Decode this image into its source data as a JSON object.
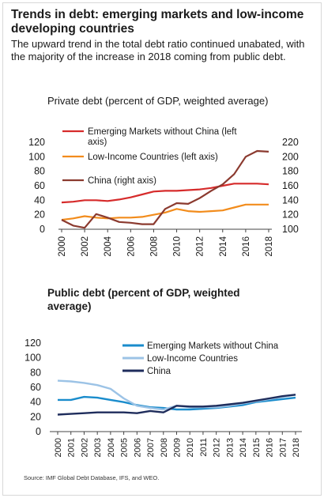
{
  "header": {
    "title": "Trends in debt: emerging markets and low-income developing countries",
    "subtitle": "The upward trend in the total debt ratio continued unabated, with the majority of the increase in 2018 coming from public debt."
  },
  "source": "Source: IMF Global Debt Database, IFS, and WEO.",
  "colors": {
    "em_red": "#d62b2b",
    "lic_orange": "#f28c1c",
    "china_brown": "#8b3a2f",
    "em_blue": "#1a8ccc",
    "lic_lightblue": "#9cc3e6",
    "china_navy": "#1f2d5c"
  },
  "chart_data": [
    {
      "type": "line",
      "title": "Private debt (percent of GDP, weighted average)",
      "x": [
        "2000",
        "2001",
        "2002",
        "2003",
        "2004",
        "2005",
        "2006",
        "2007",
        "2008",
        "2009",
        "2010",
        "2011",
        "2012",
        "2013",
        "2014",
        "2015",
        "2016",
        "2017",
        "2018"
      ],
      "xticks": [
        "2000",
        "2002",
        "2004",
        "2006",
        "2008",
        "2010",
        "2012",
        "2014",
        "2016",
        "2018"
      ],
      "ylim": [
        0,
        120
      ],
      "yticks": [
        "0",
        "20",
        "40",
        "60",
        "80",
        "100",
        "120"
      ],
      "y2lim": [
        100,
        220
      ],
      "y2ticks": [
        "100",
        "120",
        "140",
        "160",
        "180",
        "200",
        "220"
      ],
      "legend_placement": "top",
      "series": [
        {
          "name": "Emerging Markets without China (left axis)",
          "axis": "left",
          "color": "#d62b2b",
          "values": [
            37,
            38,
            40,
            40,
            39,
            41,
            44,
            48,
            52,
            53,
            53,
            54,
            55,
            57,
            60,
            63,
            63,
            63,
            62
          ]
        },
        {
          "name": "Low-Income Countries (left axis)",
          "axis": "left",
          "color": "#f28c1c",
          "values": [
            13,
            15,
            18,
            16,
            15,
            16,
            16,
            17,
            20,
            23,
            28,
            25,
            24,
            25,
            26,
            30,
            34,
            34,
            34
          ]
        },
        {
          "name": "China (right axis)",
          "axis": "right",
          "color": "#8b3a2f",
          "values": [
            113,
            105,
            102,
            121,
            116,
            110,
            109,
            107,
            107,
            128,
            136,
            135,
            143,
            153,
            162,
            176,
            200,
            208,
            207
          ]
        }
      ]
    },
    {
      "type": "line",
      "title": "Public debt (percent of GDP, weighted average)",
      "x": [
        "2000",
        "2001",
        "2002",
        "2003",
        "2004",
        "2005",
        "2006",
        "2007",
        "2008",
        "2009",
        "2010",
        "2011",
        "2012",
        "2013",
        "2014",
        "2015",
        "2016",
        "2017",
        "2018"
      ],
      "xticks": [
        "2000",
        "2001",
        "2002",
        "2003",
        "2004",
        "2005",
        "2006",
        "2007",
        "2008",
        "2009",
        "2010",
        "2011",
        "2012",
        "2013",
        "2014",
        "2015",
        "2016",
        "2017",
        "2018"
      ],
      "ylim": [
        0,
        120
      ],
      "yticks": [
        "0",
        "20",
        "40",
        "60",
        "80",
        "100",
        "120"
      ],
      "legend_placement": "top",
      "series": [
        {
          "name": "Emerging Markets without China",
          "color": "#1a8ccc",
          "values": [
            43,
            43,
            47,
            46,
            43,
            40,
            36,
            33,
            32,
            30,
            30,
            31,
            32,
            34,
            36,
            40,
            42,
            44,
            46
          ]
        },
        {
          "name": "Low-Income Countries",
          "color": "#9cc3e6",
          "values": [
            69,
            68,
            66,
            63,
            58,
            45,
            35,
            32,
            30,
            35,
            33,
            33,
            33,
            35,
            38,
            41,
            44,
            47,
            50
          ]
        },
        {
          "name": "China",
          "color": "#1f2d5c",
          "values": [
            23,
            24,
            25,
            26,
            26,
            26,
            25,
            28,
            26,
            35,
            34,
            34,
            35,
            37,
            39,
            42,
            45,
            48,
            50
          ]
        }
      ]
    }
  ]
}
